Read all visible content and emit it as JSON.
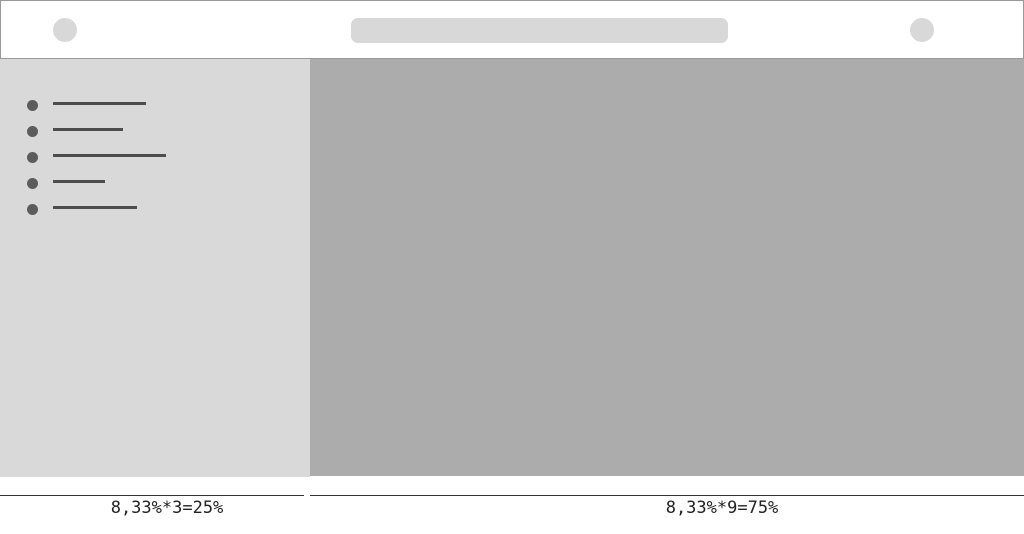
{
  "header": {
    "left_icon": "avatar-placeholder",
    "search": "search-bar-placeholder",
    "right_icon": "avatar-placeholder"
  },
  "sidebar": {
    "items": [
      {
        "icon": "bullet",
        "line_fraction": 0.3
      },
      {
        "icon": "bullet",
        "line_fraction": 0.23
      },
      {
        "icon": "bullet",
        "line_fraction": 0.37
      },
      {
        "icon": "bullet",
        "line_fraction": 0.17
      },
      {
        "icon": "bullet",
        "line_fraction": 0.27
      }
    ]
  },
  "annotations": {
    "sidebar_width": "8,33%*3=25%",
    "main_width": "8,33%*9=75%"
  },
  "colors": {
    "header_border": "#9a9a9a",
    "placeholder": "#d8d8d8",
    "sidebar_bg": "#d9d9d9",
    "main_bg": "#acacac",
    "bullet": "#5c5c5c",
    "line": "#4d4d4d"
  }
}
